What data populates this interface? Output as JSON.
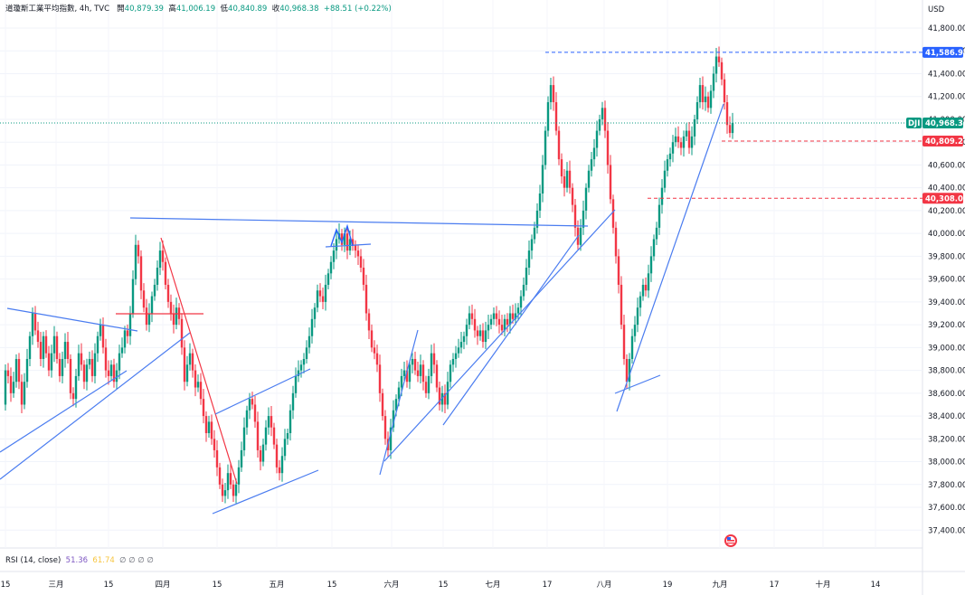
{
  "header": {
    "title": "道瓊斯工業平均指數, 4h, TVC",
    "open_label": "開",
    "open": "40,879.39",
    "high_label": "高",
    "high": "41,006.19",
    "low_label": "低",
    "low": "40,840.89",
    "close_label": "收",
    "close": "40,968.38",
    "change": "+88.51 (+0.22%)"
  },
  "currency": "USD",
  "rsi": {
    "label": "RSI (14, close)",
    "v1": "51.36",
    "v2": "61.74",
    "rest": "∅ ∅ ∅ ∅"
  },
  "colors": {
    "up": "#089981",
    "down": "#f23645",
    "trend": "#4a7cf0",
    "accent_blue": "#2962ff",
    "dji_tag": "#089981",
    "red_tag": "#f23645"
  },
  "chart_data": {
    "type": "candlestick",
    "symbol": "DJI",
    "ylim": [
      37200,
      41950
    ],
    "y_ticks": [
      "41,800.00",
      "41,600.00",
      "41,400.00",
      "41,200.00",
      "41,000.00",
      "40,800.00",
      "40,600.00",
      "40,400.00",
      "40,200.00",
      "40,000.00",
      "39,800.00",
      "39,600.00",
      "39,400.00",
      "39,200.00",
      "39,000.00",
      "38,800.00",
      "38,600.00",
      "38,400.00",
      "38,200.00",
      "38,000.00",
      "37,800.00",
      "37,600.00",
      "37,400.00"
    ],
    "x_ticks": [
      "15",
      "三月",
      "15",
      "四月",
      "15",
      "五月",
      "15",
      "六月",
      "15",
      "七月",
      "17",
      "八月",
      "19",
      "九月",
      "17",
      "十月",
      "14"
    ],
    "price_tags": [
      {
        "label": "41,586.94",
        "value": 41586.94,
        "kind": "high"
      },
      {
        "label": "40,968.38",
        "value": 40968.38,
        "kind": "last",
        "symbol": "DJI"
      },
      {
        "label": "40,809.21",
        "value": 40809.21,
        "kind": "red"
      },
      {
        "label": "40,308.01",
        "value": 40308.01,
        "kind": "red"
      }
    ],
    "path": [
      [
        0,
        38500
      ],
      [
        3,
        38800
      ],
      [
        6,
        38750
      ],
      [
        9,
        38600
      ],
      [
        12,
        38700
      ],
      [
        15,
        38900
      ],
      [
        18,
        38700
      ],
      [
        21,
        38500
      ],
      [
        24,
        38700
      ],
      [
        27,
        38900
      ],
      [
        30,
        39100
      ],
      [
        33,
        39300
      ],
      [
        36,
        39150
      ],
      [
        39,
        39050
      ],
      [
        42,
        38900
      ],
      [
        45,
        39100
      ],
      [
        48,
        38950
      ],
      [
        51,
        38800
      ],
      [
        54,
        38950
      ],
      [
        57,
        39100
      ],
      [
        60,
        38900
      ],
      [
        63,
        38750
      ],
      [
        66,
        38900
      ],
      [
        69,
        39050
      ],
      [
        72,
        38900
      ],
      [
        75,
        38600
      ],
      [
        78,
        38550
      ],
      [
        81,
        38750
      ],
      [
        84,
        38950
      ],
      [
        87,
        38850
      ],
      [
        90,
        38700
      ],
      [
        93,
        38850
      ],
      [
        96,
        38900
      ],
      [
        99,
        38750
      ],
      [
        102,
        38950
      ],
      [
        105,
        39100
      ],
      [
        108,
        39200
      ],
      [
        111,
        39000
      ],
      [
        114,
        38800
      ],
      [
        117,
        38750
      ],
      [
        120,
        38850
      ],
      [
        123,
        38700
      ],
      [
        126,
        38800
      ],
      [
        129,
        38950
      ],
      [
        132,
        39000
      ],
      [
        135,
        39150
      ],
      [
        138,
        39100
      ],
      [
        141,
        39300
      ],
      [
        144,
        39600
      ],
      [
        147,
        39900
      ],
      [
        150,
        39800
      ],
      [
        153,
        39500
      ],
      [
        156,
        39350
      ],
      [
        159,
        39200
      ],
      [
        162,
        39300
      ],
      [
        165,
        39450
      ],
      [
        168,
        39550
      ],
      [
        171,
        39700
      ],
      [
        174,
        39850
      ],
      [
        177,
        39750
      ],
      [
        180,
        39550
      ],
      [
        183,
        39400
      ],
      [
        186,
        39300
      ],
      [
        189,
        39200
      ],
      [
        192,
        39350
      ],
      [
        195,
        39250
      ],
      [
        198,
        39000
      ],
      [
        201,
        38700
      ],
      [
        204,
        38850
      ],
      [
        207,
        38950
      ],
      [
        210,
        38800
      ],
      [
        213,
        38650
      ],
      [
        216,
        38700
      ],
      [
        219,
        38550
      ],
      [
        222,
        38400
      ],
      [
        225,
        38250
      ],
      [
        228,
        38350
      ],
      [
        231,
        38200
      ],
      [
        234,
        38100
      ],
      [
        237,
        37950
      ],
      [
        240,
        37800
      ],
      [
        243,
        37700
      ],
      [
        246,
        37750
      ],
      [
        249,
        37900
      ],
      [
        252,
        37800
      ],
      [
        255,
        37700
      ],
      [
        258,
        37800
      ],
      [
        261,
        37950
      ],
      [
        264,
        38100
      ],
      [
        267,
        38300
      ],
      [
        270,
        38450
      ],
      [
        273,
        38550
      ],
      [
        276,
        38500
      ],
      [
        279,
        38350
      ],
      [
        282,
        38100
      ],
      [
        285,
        38000
      ],
      [
        288,
        38150
      ],
      [
        291,
        38300
      ],
      [
        294,
        38400
      ],
      [
        297,
        38300
      ],
      [
        300,
        38150
      ],
      [
        303,
        37950
      ],
      [
        306,
        37900
      ],
      [
        309,
        38050
      ],
      [
        312,
        38200
      ],
      [
        315,
        38250
      ],
      [
        318,
        38450
      ],
      [
        321,
        38600
      ],
      [
        324,
        38750
      ],
      [
        327,
        38800
      ],
      [
        330,
        38850
      ],
      [
        333,
        38900
      ],
      [
        336,
        39000
      ],
      [
        339,
        39100
      ],
      [
        342,
        39250
      ],
      [
        345,
        39350
      ],
      [
        348,
        39500
      ],
      [
        351,
        39450
      ],
      [
        354,
        39400
      ],
      [
        357,
        39550
      ],
      [
        360,
        39650
      ],
      [
        363,
        39750
      ],
      [
        366,
        39850
      ],
      [
        369,
        39950
      ],
      [
        372,
        40000
      ],
      [
        375,
        39900
      ],
      [
        378,
        40000
      ],
      [
        381,
        39850
      ],
      [
        384,
        39950
      ],
      [
        387,
        39900
      ],
      [
        390,
        39850
      ],
      [
        393,
        39800
      ],
      [
        396,
        39700
      ],
      [
        399,
        39550
      ],
      [
        402,
        39300
      ],
      [
        405,
        39150
      ],
      [
        408,
        39000
      ],
      [
        411,
        38950
      ],
      [
        414,
        38850
      ],
      [
        417,
        38600
      ],
      [
        420,
        38400
      ],
      [
        423,
        38200
      ],
      [
        426,
        38100
      ],
      [
        429,
        38300
      ],
      [
        432,
        38450
      ],
      [
        435,
        38550
      ],
      [
        438,
        38650
      ],
      [
        441,
        38750
      ],
      [
        444,
        38800
      ],
      [
        447,
        38700
      ],
      [
        450,
        38850
      ],
      [
        453,
        38900
      ],
      [
        456,
        38800
      ],
      [
        459,
        38750
      ],
      [
        462,
        38850
      ],
      [
        465,
        38700
      ],
      [
        468,
        38600
      ],
      [
        471,
        38750
      ],
      [
        474,
        38950
      ],
      [
        477,
        38850
      ],
      [
        480,
        38650
      ],
      [
        483,
        38500
      ],
      [
        486,
        38600
      ],
      [
        489,
        38500
      ],
      [
        492,
        38700
      ],
      [
        495,
        38850
      ],
      [
        498,
        38900
      ],
      [
        501,
        38950
      ],
      [
        504,
        39000
      ],
      [
        507,
        39050
      ],
      [
        510,
        39100
      ],
      [
        513,
        39200
      ],
      [
        516,
        39300
      ],
      [
        519,
        39250
      ],
      [
        522,
        39150
      ],
      [
        525,
        39100
      ],
      [
        528,
        39150
      ],
      [
        531,
        39050
      ],
      [
        534,
        39150
      ],
      [
        537,
        39200
      ],
      [
        540,
        39250
      ],
      [
        543,
        39300
      ],
      [
        546,
        39250
      ],
      [
        549,
        39200
      ],
      [
        552,
        39150
      ],
      [
        555,
        39250
      ],
      [
        558,
        39200
      ],
      [
        561,
        39300
      ],
      [
        564,
        39250
      ],
      [
        567,
        39300
      ],
      [
        570,
        39350
      ],
      [
        573,
        39450
      ],
      [
        576,
        39550
      ],
      [
        579,
        39700
      ],
      [
        582,
        39850
      ],
      [
        585,
        39950
      ],
      [
        588,
        40050
      ],
      [
        591,
        40200
      ],
      [
        594,
        40350
      ],
      [
        597,
        40600
      ],
      [
        600,
        40900
      ],
      [
        603,
        41150
      ],
      [
        606,
        41300
      ],
      [
        609,
        41150
      ],
      [
        612,
        40900
      ],
      [
        615,
        40650
      ],
      [
        618,
        40500
      ],
      [
        621,
        40400
      ],
      [
        624,
        40550
      ],
      [
        627,
        40400
      ],
      [
        630,
        40250
      ],
      [
        633,
        40050
      ],
      [
        636,
        39900
      ],
      [
        639,
        40050
      ],
      [
        642,
        40200
      ],
      [
        645,
        40400
      ],
      [
        648,
        40550
      ],
      [
        651,
        40650
      ],
      [
        654,
        40750
      ],
      [
        657,
        40900
      ],
      [
        660,
        41000
      ],
      [
        663,
        41100
      ],
      [
        666,
        40900
      ],
      [
        669,
        40600
      ],
      [
        672,
        40300
      ],
      [
        675,
        40050
      ],
      [
        678,
        39800
      ],
      [
        681,
        39550
      ],
      [
        684,
        39200
      ],
      [
        687,
        38900
      ],
      [
        690,
        38700
      ],
      [
        693,
        38900
      ],
      [
        696,
        39100
      ],
      [
        699,
        39200
      ],
      [
        702,
        39350
      ],
      [
        705,
        39450
      ],
      [
        708,
        39550
      ],
      [
        711,
        39500
      ],
      [
        714,
        39650
      ],
      [
        717,
        39800
      ],
      [
        720,
        39950
      ],
      [
        723,
        40050
      ],
      [
        726,
        40250
      ],
      [
        729,
        40400
      ],
      [
        732,
        40550
      ],
      [
        735,
        40650
      ],
      [
        738,
        40700
      ],
      [
        741,
        40800
      ],
      [
        744,
        40850
      ],
      [
        747,
        40800
      ],
      [
        750,
        40750
      ],
      [
        753,
        40850
      ],
      [
        756,
        40900
      ],
      [
        759,
        40750
      ],
      [
        762,
        40850
      ],
      [
        765,
        41000
      ],
      [
        768,
        41150
      ],
      [
        771,
        41300
      ],
      [
        774,
        41150
      ],
      [
        777,
        41200
      ],
      [
        780,
        41100
      ],
      [
        783,
        41250
      ],
      [
        786,
        41400
      ],
      [
        789,
        41550
      ],
      [
        792,
        41500
      ],
      [
        795,
        41350
      ],
      [
        798,
        41150
      ],
      [
        801,
        40950
      ],
      [
        804,
        40880
      ],
      [
        807,
        40968
      ]
    ]
  }
}
